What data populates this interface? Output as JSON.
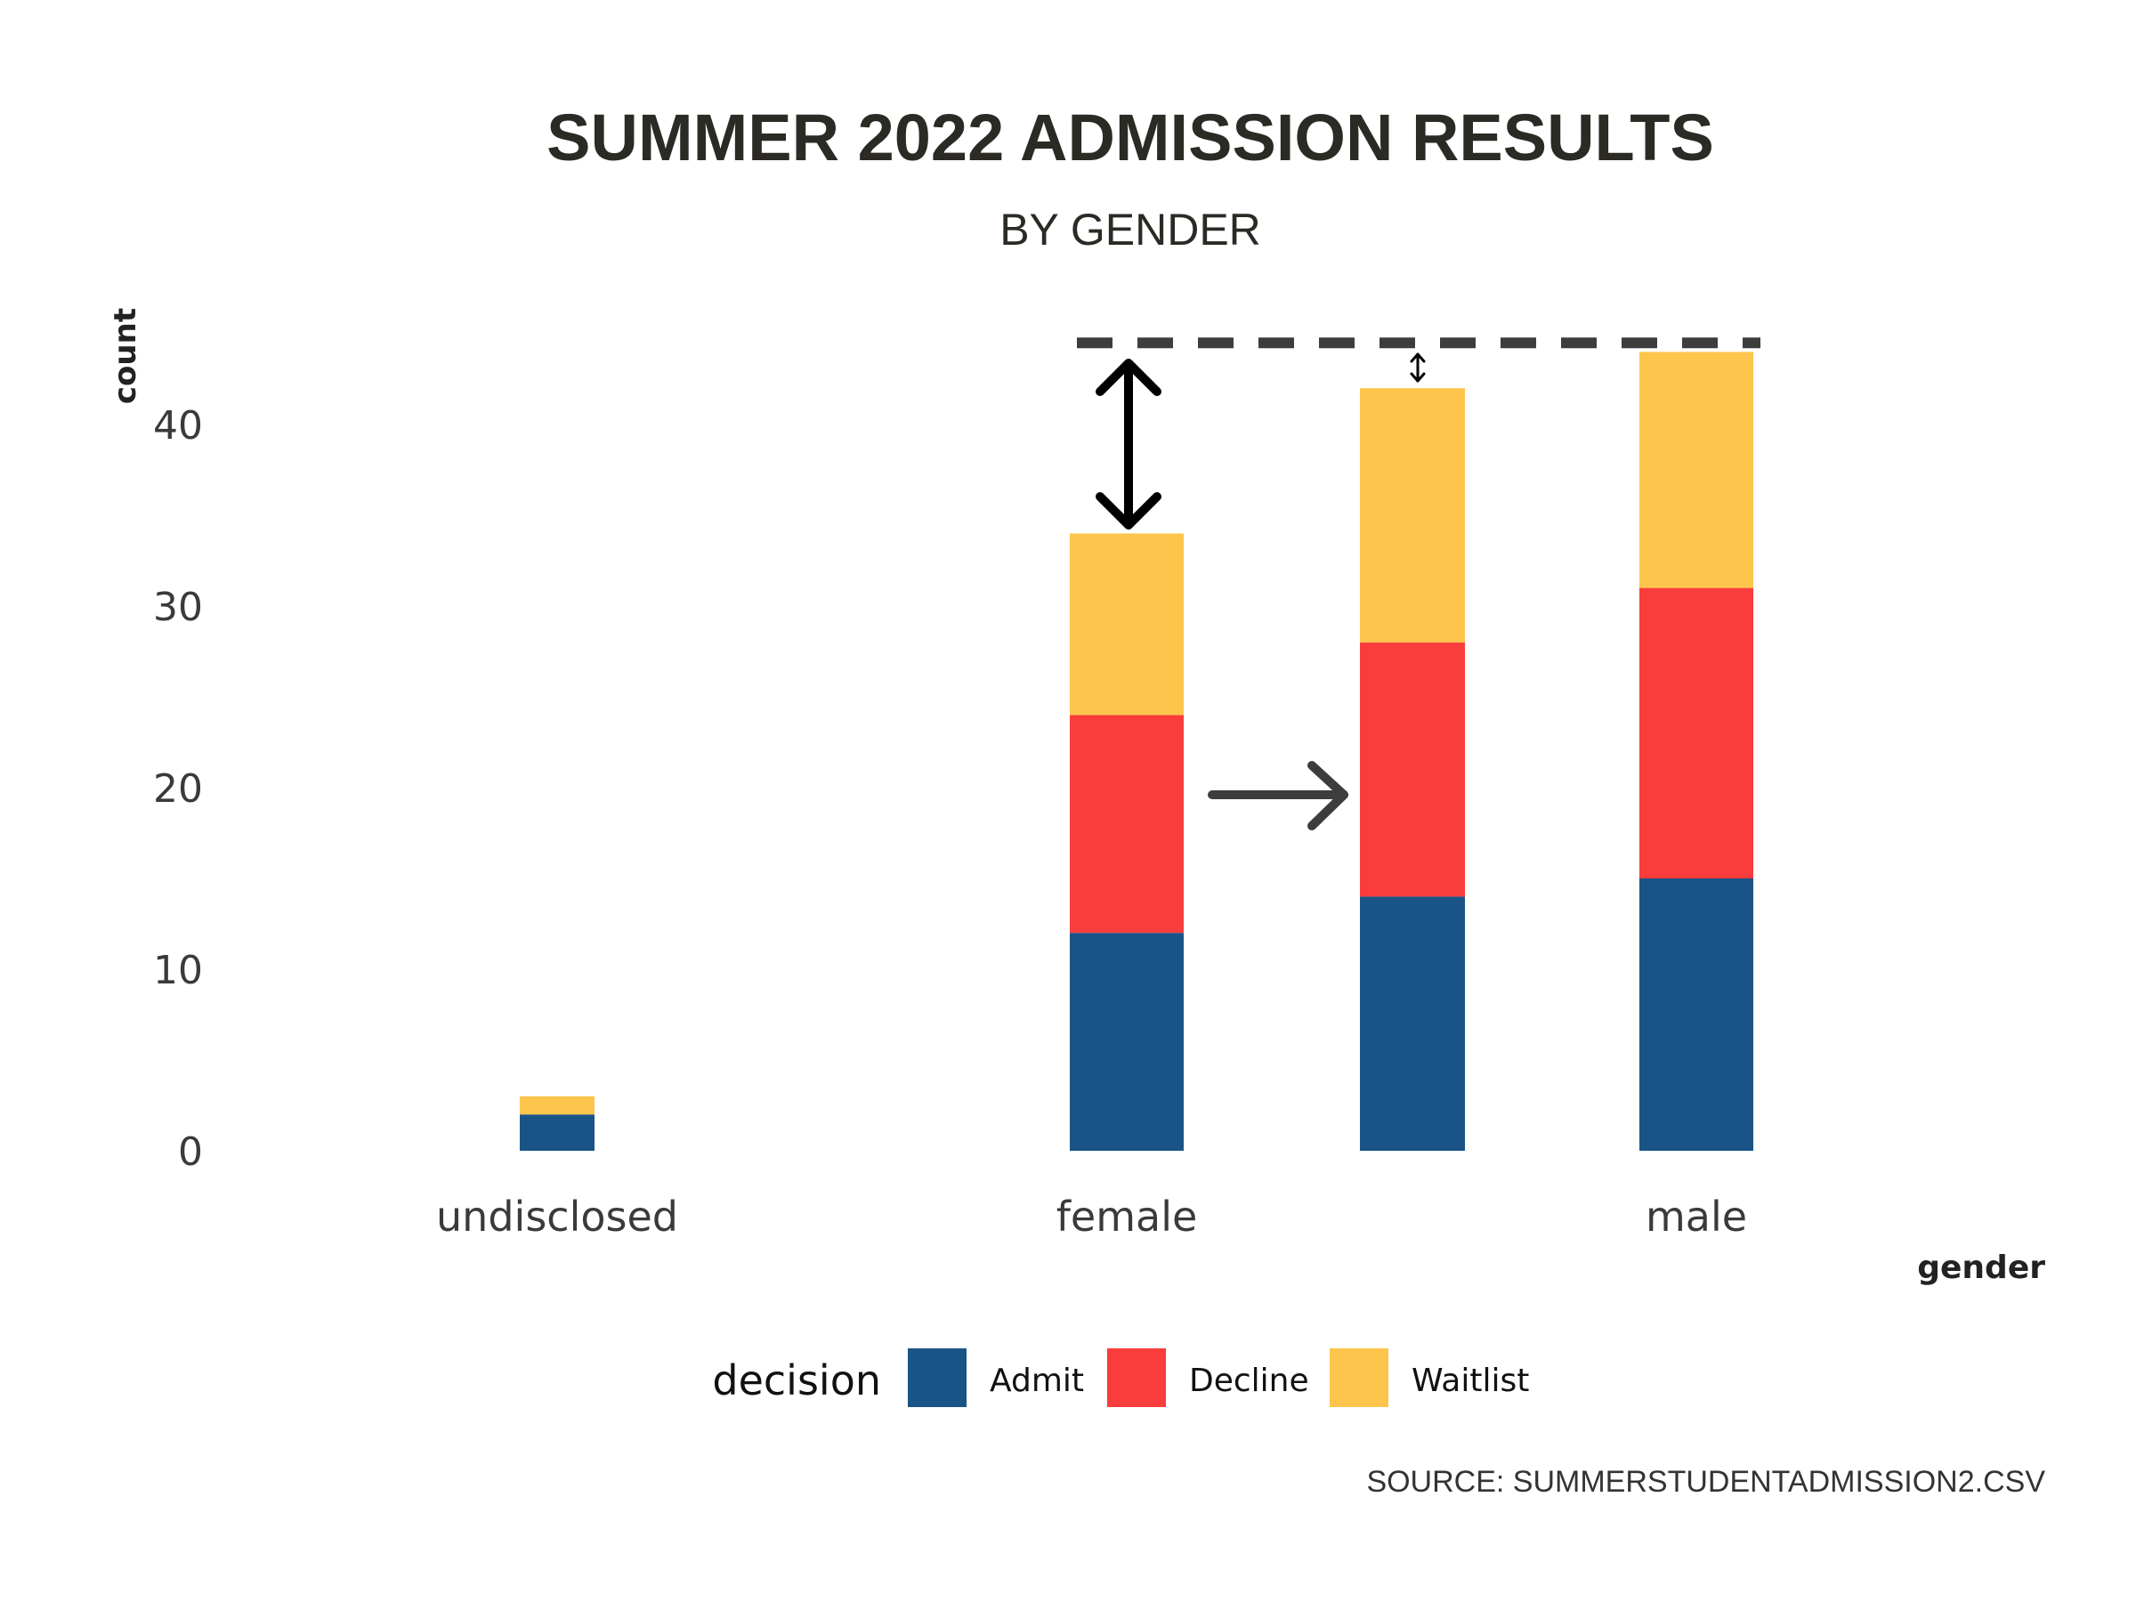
{
  "chart_data": {
    "type": "bar",
    "stacked": true,
    "title": "SUMMER 2022 ADMISSION RESULTS",
    "subtitle": "BY GENDER",
    "xlabel": "gender",
    "ylabel": "count",
    "categories": [
      "undisclosed",
      "female",
      "male"
    ],
    "extra_bar": {
      "admit": 14,
      "decline": 14,
      "waitlist": 14
    },
    "series": [
      {
        "name": "Admit",
        "values": [
          2,
          12,
          15
        ]
      },
      {
        "name": "Decline",
        "values": [
          0,
          12,
          16
        ]
      },
      {
        "name": "Waitlist",
        "values": [
          1,
          10,
          13
        ]
      }
    ],
    "ylim": [
      0,
      44
    ],
    "yticks": [
      0,
      10,
      20,
      30,
      40
    ],
    "reference_line": 44.5,
    "legend": {
      "title": "decision",
      "position": "bottom"
    },
    "grid": false,
    "colors": {
      "Admit": "#1a5487",
      "Decline": "#f93c3c",
      "Waitlist": "#fdc54b"
    },
    "source": "SOURCE: SUMMERSTUDENTADMISSION2.CSV"
  }
}
